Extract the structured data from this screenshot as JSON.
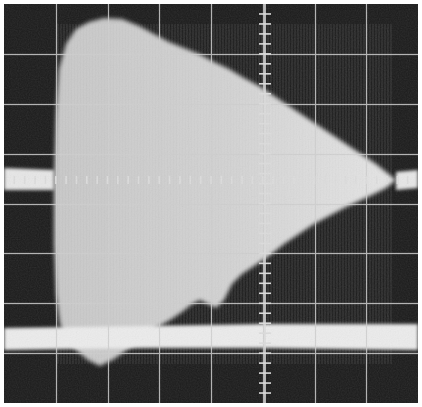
{
  "image": {
    "kind": "oscilloscope-photograph",
    "palette": {
      "screen": "#161616",
      "trace": "#e6e6e6",
      "graticule": "#cfcfcf",
      "frame": "#ffffff"
    },
    "graticule": {
      "major_columns": 8,
      "major_rows": 8,
      "minor_ticks_per_division": 5
    }
  }
}
